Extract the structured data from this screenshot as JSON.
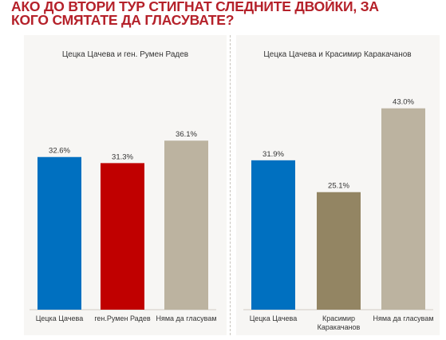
{
  "title": {
    "line1": "АКО ДО ВТОРИ ТУР СТИГНАТ СЛЕДНИТЕ ДВОЙКИ, ЗА",
    "line2": "КОГО СМЯТАТЕ ДА ГЛАСУВАТЕ?"
  },
  "colors": {
    "title": "#b5212a",
    "blue": "#0070c0",
    "red": "#c00000",
    "beige": "#bcb3a0",
    "brown": "#938563"
  },
  "chart_data": [
    {
      "type": "bar",
      "title": "Цецка Цачева и ген. Румен Радев",
      "categories": [
        "Цецка Цачева",
        "ген.Румен Радев",
        "Няма да гласувам"
      ],
      "values": [
        32.6,
        31.3,
        36.1
      ],
      "labels": [
        "32.6%",
        "31.3%",
        "36.1%"
      ],
      "bar_colors": [
        "#0070c0",
        "#c00000",
        "#bcb3a0"
      ],
      "ylim": [
        0,
        45
      ],
      "grid": false
    },
    {
      "type": "bar",
      "title": "Цецка Цачева и Красимир Каракачанов",
      "categories": [
        "Цецка Цачева",
        "Красимир\nКаракачанов",
        "Няма да гласувам"
      ],
      "values": [
        31.9,
        25.1,
        43.0
      ],
      "labels": [
        "31.9%",
        "25.1%",
        "43.0%"
      ],
      "bar_colors": [
        "#0070c0",
        "#938563",
        "#bcb3a0"
      ],
      "ylim": [
        0,
        45
      ],
      "grid": false
    }
  ]
}
